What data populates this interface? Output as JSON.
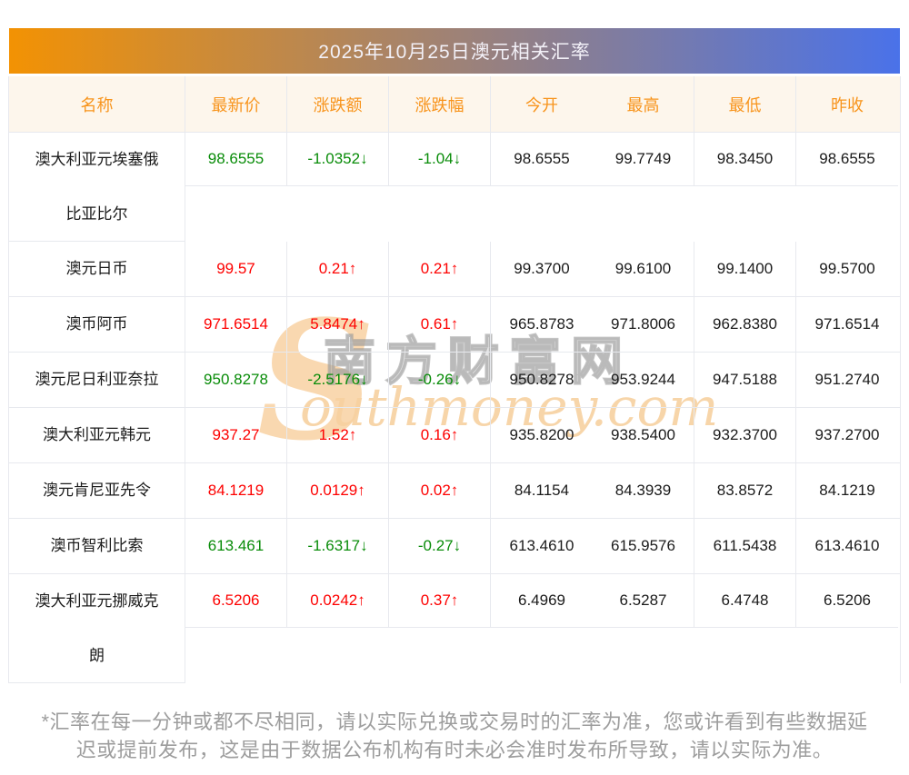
{
  "page": {
    "title": "2025年10月25日澳元相关汇率",
    "footer_line1": "*汇率在每一分钟或都不尽相同，请以实际兑换或交易时的汇率为准，您或许看到有些数据延",
    "footer_line2": "迟或提前发布，这是由于数据公布机构有时未必会准时发布所导致，请以实际为准。"
  },
  "colors": {
    "up_red": "#fd0100",
    "down_green": "#098c09",
    "header_orange": "#f8941c",
    "gradient_left": "#f39203",
    "gradient_right": "#4a72e9",
    "header_bg_cream": "#fdf6ec",
    "grid_line": "#e7e9ee",
    "number_ink": "#1b1b1b",
    "footer_gray": "#9d9d9d"
  },
  "watermark": {
    "s_glyph": "S",
    "cn_text": "南方财富网",
    "en_text": "outhmoney.com"
  },
  "table": {
    "columns": [
      "名称",
      "最新价",
      "涨跌额",
      "涨跌幅",
      "今开",
      "最高",
      "最低",
      "昨收"
    ],
    "rows": [
      {
        "name": "澳大利亚元埃塞俄比亚比尔",
        "latest": "98.6555",
        "change": "-1.0352↓",
        "change_pct": "-1.04↓",
        "open": "98.6555",
        "high": "99.7749",
        "low": "98.3450",
        "prev_close": "98.6555",
        "trend": "down",
        "two_line": true
      },
      {
        "name": "澳元日币",
        "latest": "99.57",
        "change": "0.21↑",
        "change_pct": "0.21↑",
        "open": "99.3700",
        "high": "99.6100",
        "low": "99.1400",
        "prev_close": "99.5700",
        "trend": "up",
        "two_line": false
      },
      {
        "name": "澳币阿币",
        "latest": "971.6514",
        "change": "5.8474↑",
        "change_pct": "0.61↑",
        "open": "965.8783",
        "high": "971.8006",
        "low": "962.8380",
        "prev_close": "971.6514",
        "trend": "up",
        "two_line": false
      },
      {
        "name": "澳元尼日利亚奈拉",
        "latest": "950.8278",
        "change": "-2.5176↓",
        "change_pct": "-0.26↓",
        "open": "950.8278",
        "high": "953.9244",
        "low": "947.5188",
        "prev_close": "951.2740",
        "trend": "down",
        "two_line": false
      },
      {
        "name": "澳大利亚元韩元",
        "latest": "937.27",
        "change": "1.52↑",
        "change_pct": "0.16↑",
        "open": "935.8200",
        "high": "938.5400",
        "low": "932.3700",
        "prev_close": "937.2700",
        "trend": "up",
        "two_line": false
      },
      {
        "name": "澳元肯尼亚先令",
        "latest": "84.1219",
        "change": "0.0129↑",
        "change_pct": "0.02↑",
        "open": "84.1154",
        "high": "84.3939",
        "low": "83.8572",
        "prev_close": "84.1219",
        "trend": "up",
        "two_line": false
      },
      {
        "name": "澳币智利比索",
        "latest": "613.461",
        "change": "-1.6317↓",
        "change_pct": "-0.27↓",
        "open": "613.4610",
        "high": "615.9576",
        "low": "611.5438",
        "prev_close": "613.4610",
        "trend": "down",
        "two_line": false
      },
      {
        "name": "澳大利亚元挪威克朗",
        "latest": "6.5206",
        "change": "0.0242↑",
        "change_pct": "0.37↑",
        "open": "6.4969",
        "high": "6.5287",
        "low": "6.4748",
        "prev_close": "6.5206",
        "trend": "up",
        "two_line": true
      }
    ]
  }
}
